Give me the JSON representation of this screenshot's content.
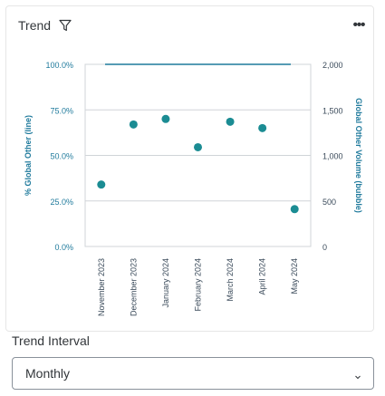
{
  "card": {
    "title": "Trend",
    "filter_icon": "filter-icon",
    "more_icon": "more-horizontal-icon",
    "more_glyph": "•••"
  },
  "colors": {
    "axis_text_accent": "#1f7a9c",
    "axis_text": "#3a4a5a",
    "line": "#1f7a9c",
    "bubble": "#1b8c93",
    "grid": "#d0d4d8"
  },
  "chart_data": {
    "type": "scatter",
    "title": "",
    "categories": [
      "November 2023",
      "December 2023",
      "January 2024",
      "February 2024",
      "March 2024",
      "April 2024",
      "May 2024"
    ],
    "y_left": {
      "label": "% Global Other (line)",
      "ticks": [
        "100.0%",
        "75.0%",
        "50.0%",
        "25.0%",
        "0.0%"
      ],
      "range": [
        0,
        100
      ]
    },
    "y_right": {
      "label": "Global Other Volume (bubble)",
      "ticks": [
        "2,000",
        "1,500",
        "1,000",
        "500",
        "0"
      ],
      "range": [
        0,
        2000
      ]
    },
    "series": [
      {
        "name": "% Global Other (line)",
        "kind": "line",
        "axis": "left",
        "values": [
          100,
          100,
          100,
          100,
          100,
          100,
          100
        ]
      },
      {
        "name": "Global Other Volume (bubble)",
        "kind": "bubble",
        "axis": "right",
        "values": [
          680,
          1340,
          1400,
          1090,
          1370,
          1300,
          410
        ]
      }
    ],
    "grid": true
  },
  "trend_interval": {
    "label": "Trend Interval",
    "value": "Monthly",
    "chevron_icon": "chevron-down-icon"
  }
}
